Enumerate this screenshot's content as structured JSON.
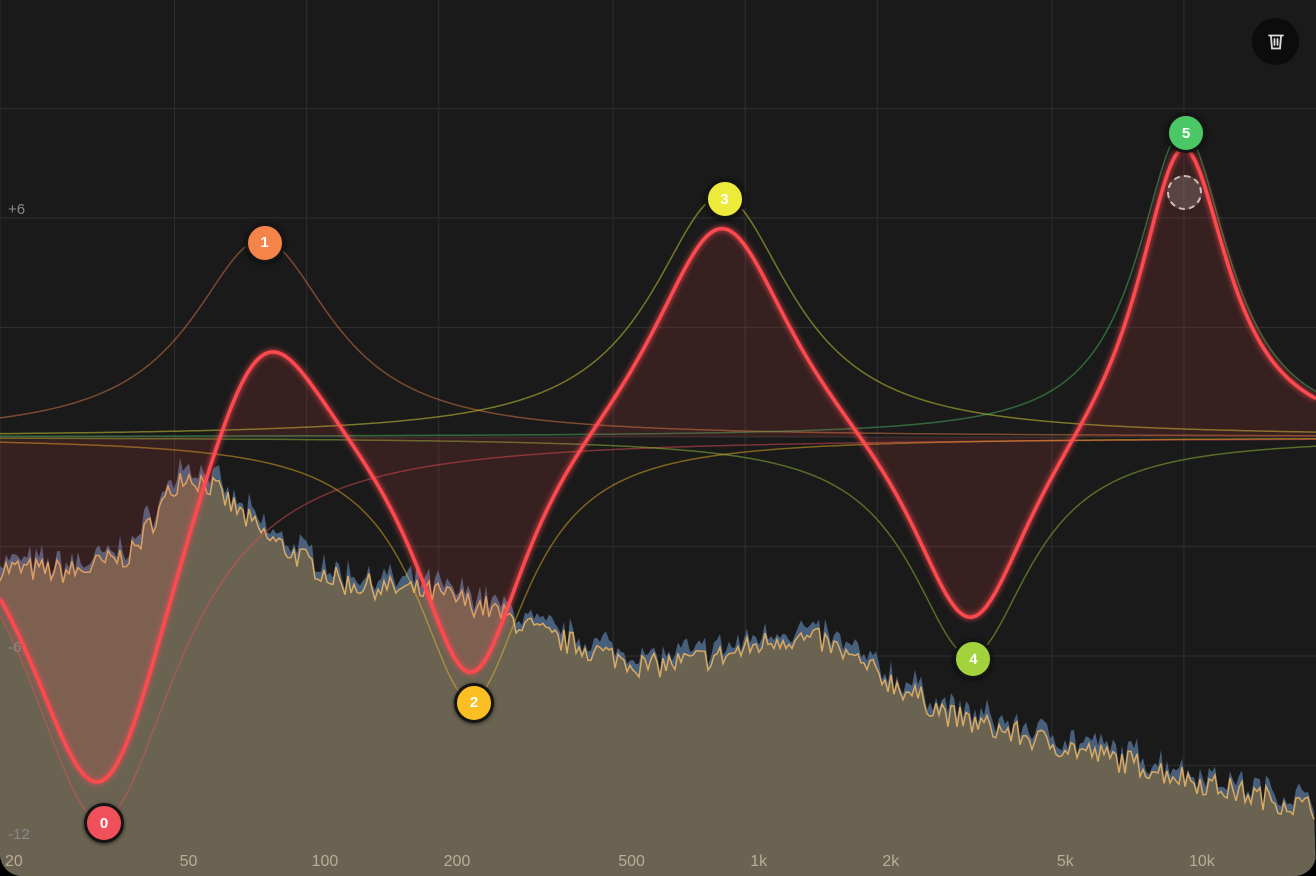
{
  "chart_data": {
    "type": "line",
    "x_scale": "log",
    "xlim": [
      20,
      20000
    ],
    "ylim": [
      -12,
      12
    ],
    "grid": true,
    "x_ticks": [
      {
        "v": 20,
        "label": "20"
      },
      {
        "v": 50,
        "label": "50"
      },
      {
        "v": 100,
        "label": "100"
      },
      {
        "v": 200,
        "label": "200"
      },
      {
        "v": 500,
        "label": "500"
      },
      {
        "v": 1000,
        "label": "1k"
      },
      {
        "v": 2000,
        "label": "2k"
      },
      {
        "v": 5000,
        "label": "5k"
      },
      {
        "v": 10000,
        "label": "10k"
      }
    ],
    "y_ticks": [
      {
        "v": 6,
        "label": "+6"
      },
      {
        "v": -6,
        "label": "-6"
      },
      {
        "v": -12,
        "label": "-12"
      }
    ],
    "bands": [
      {
        "label": "0",
        "freq": 34,
        "gain": -10.5,
        "q": 1.0,
        "color": "#f0505a"
      },
      {
        "label": "1",
        "freq": 79,
        "gain": 5.4,
        "q": 1.1,
        "color": "#f5844a"
      },
      {
        "label": "2",
        "freq": 237,
        "gain": -7.2,
        "q": 1.4,
        "color": "#fbbf24"
      },
      {
        "label": "3",
        "freq": 883,
        "gain": 6.6,
        "q": 1.1,
        "color": "#eeea3a"
      },
      {
        "label": "4",
        "freq": 3260,
        "gain": -6.0,
        "q": 1.3,
        "color": "#a3d33c"
      },
      {
        "label": "5",
        "freq": 9950,
        "gain": 8.4,
        "q": 1.7,
        "color": "#4cc765"
      }
    ],
    "response_color": "#ff4a4f",
    "spectrum": {
      "freq": [
        20,
        30,
        40,
        52,
        60,
        80,
        120,
        200,
        260,
        360,
        600,
        900,
        1200,
        1500,
        2000,
        3000,
        5000,
        8000,
        12000,
        20000
      ],
      "db": [
        -3.6,
        -3.7,
        -3.2,
        -1.0,
        -1.3,
        -2.7,
        -4.0,
        -4.3,
        -4.7,
        -5.5,
        -6.3,
        -6.0,
        -5.5,
        -5.6,
        -6.5,
        -7.7,
        -8.4,
        -9.0,
        -9.6,
        -10.2
      ],
      "colors": [
        "#6b6352",
        "#d9aa62",
        "#4f6888"
      ]
    }
  },
  "toolbar": {
    "delete_icon": "trash-icon"
  }
}
